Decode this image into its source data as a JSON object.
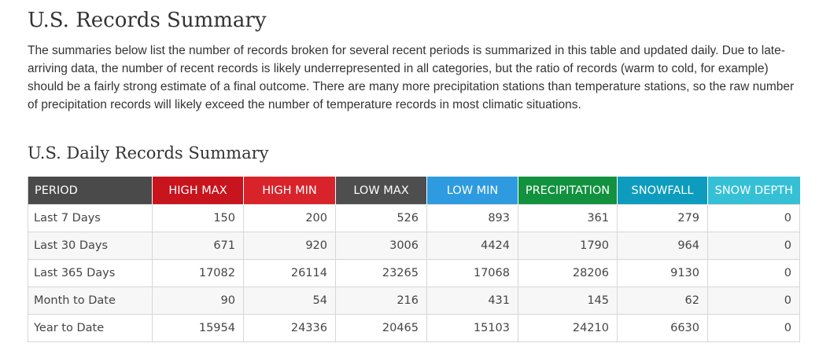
{
  "page": {
    "title": "U.S. Records Summary",
    "intro": "The summaries below list the number of records broken for several recent periods is summarized in this table and updated daily. Due to late-arriving data, the number of recent records is likely underrepresented in all categories, but the ratio of records (warm to cold, for example) should be a fairly strong estimate of a final outcome. There are many more precipitation stations than temperature stations, so the raw number of precipitation records will likely exceed the number of temperature records in most climatic situations."
  },
  "daily_summary": {
    "title": "U.S. Daily Records Summary",
    "columns": [
      {
        "key": "period",
        "label": "PERIOD",
        "color": "#4a4a4a"
      },
      {
        "key": "high_max",
        "label": "HIGH MAX",
        "color": "#c8141c"
      },
      {
        "key": "high_min",
        "label": "HIGH MIN",
        "color": "#d9232b"
      },
      {
        "key": "low_max",
        "label": "LOW MAX",
        "color": "#4e4e4e"
      },
      {
        "key": "low_min",
        "label": "LOW MIN",
        "color": "#2e9be0"
      },
      {
        "key": "precipitation",
        "label": "PRECIPITATION",
        "color": "#12913f"
      },
      {
        "key": "snowfall",
        "label": "SNOWFALL",
        "color": "#0d9cbd"
      },
      {
        "key": "snow_depth",
        "label": "SNOW DEPTH",
        "color": "#36c0d6"
      }
    ],
    "rows": [
      {
        "period": "Last 7 Days",
        "values": [
          "150",
          "200",
          "526",
          "893",
          "361",
          "279",
          "0"
        ]
      },
      {
        "period": "Last 30 Days",
        "values": [
          "671",
          "920",
          "3006",
          "4424",
          "1790",
          "964",
          "0"
        ]
      },
      {
        "period": "Last 365 Days",
        "values": [
          "17082",
          "26114",
          "23265",
          "17068",
          "28206",
          "9130",
          "0"
        ]
      },
      {
        "period": "Month to Date",
        "values": [
          "90",
          "54",
          "216",
          "431",
          "145",
          "62",
          "0"
        ]
      },
      {
        "period": "Year to Date",
        "values": [
          "15954",
          "24336",
          "20465",
          "15103",
          "24210",
          "6630",
          "0"
        ]
      }
    ]
  }
}
